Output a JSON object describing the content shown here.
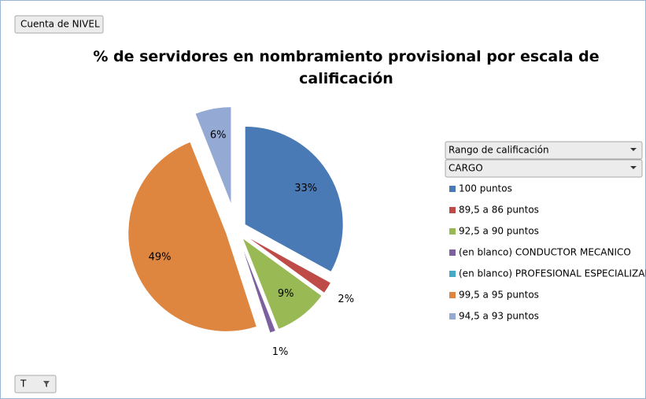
{
  "chart_data": {
    "type": "pie",
    "title": "% de servidores en nombramiento provisional por escala de calificación",
    "filter_button": "Cuenta de NIVEL",
    "legend_fields": [
      "Rango de calificación",
      "CARGO"
    ],
    "axis_button": "T",
    "categories": [
      "100 puntos",
      "89,5 a 86 puntos",
      "92,5 a 90 puntos",
      "(en blanco) CONDUCTOR MECANICO",
      "(en blanco) PROFESIONAL ESPECIALIZADO",
      "99,5 a 95 puntos",
      "94,5 a 93 puntos"
    ],
    "values": [
      33,
      2,
      9,
      1,
      0,
      49,
      6
    ],
    "value_labels": [
      "33%",
      "2%",
      "9%",
      "1%",
      null,
      "49%",
      "6%"
    ],
    "colors": [
      "#4a7ab5",
      "#be4b48",
      "#98b954",
      "#7d60a0",
      "#46aac5",
      "#de8640",
      "#94a9d4"
    ],
    "legend": "right"
  }
}
